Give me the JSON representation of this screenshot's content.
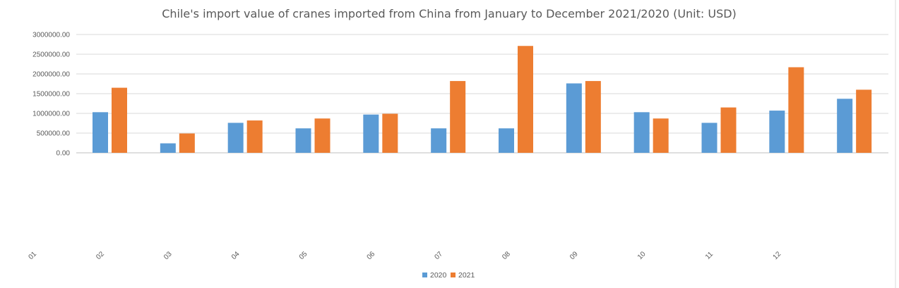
{
  "chart_data": {
    "type": "bar",
    "title": "Chile's import value of cranes imported from China from January to December 2021/2020 (Unit: USD)",
    "categories": [
      "01",
      "02",
      "03",
      "04",
      "05",
      "06",
      "07",
      "08",
      "09",
      "10",
      "11",
      "12"
    ],
    "series": [
      {
        "name": "2020",
        "color": "#5b9bd5",
        "values": [
          1030000,
          240000,
          760000,
          620000,
          970000,
          620000,
          620000,
          1760000,
          1030000,
          760000,
          1070000,
          1370000
        ]
      },
      {
        "name": "2021",
        "color": "#ed7d31",
        "values": [
          1650000,
          490000,
          820000,
          870000,
          990000,
          1820000,
          2710000,
          1820000,
          870000,
          1150000,
          2170000,
          1600000
        ]
      }
    ],
    "y_ticks": [
      "0.00",
      "500000.00",
      "1000000.00",
      "1500000.00",
      "2000000.00",
      "2500000.00",
      "3000000.00"
    ],
    "ylim": [
      0,
      3000000
    ],
    "grid": true,
    "legend_position": "bottom"
  }
}
